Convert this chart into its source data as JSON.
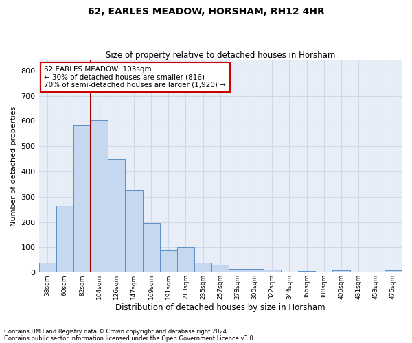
{
  "title": "62, EARLES MEADOW, HORSHAM, RH12 4HR",
  "subtitle": "Size of property relative to detached houses in Horsham",
  "xlabel": "Distribution of detached houses by size in Horsham",
  "ylabel": "Number of detached properties",
  "bin_labels": [
    "38sqm",
    "60sqm",
    "82sqm",
    "104sqm",
    "126sqm",
    "147sqm",
    "169sqm",
    "191sqm",
    "213sqm",
    "235sqm",
    "257sqm",
    "278sqm",
    "300sqm",
    "322sqm",
    "344sqm",
    "366sqm",
    "388sqm",
    "409sqm",
    "431sqm",
    "453sqm",
    "475sqm"
  ],
  "bar_values": [
    38,
    265,
    585,
    603,
    450,
    328,
    197,
    89,
    102,
    38,
    32,
    15,
    15,
    12,
    0,
    7,
    0,
    8,
    0,
    0,
    8
  ],
  "bar_color": "#c5d8f0",
  "bar_edge_color": "#5b8fc4",
  "grid_color": "#d0d8e8",
  "background_color": "#e8eef8",
  "vline_color": "#aa0000",
  "annotation_text": "62 EARLES MEADOW: 103sqm\n← 30% of detached houses are smaller (816)\n70% of semi-detached houses are larger (1,920) →",
  "annotation_box_color": "#ffffff",
  "annotation_box_edge": "#cc0000",
  "ylim": [
    0,
    840
  ],
  "yticks": [
    0,
    100,
    200,
    300,
    400,
    500,
    600,
    700,
    800
  ],
  "footnote1": "Contains HM Land Registry data © Crown copyright and database right 2024.",
  "footnote2": "Contains public sector information licensed under the Open Government Licence v3.0."
}
